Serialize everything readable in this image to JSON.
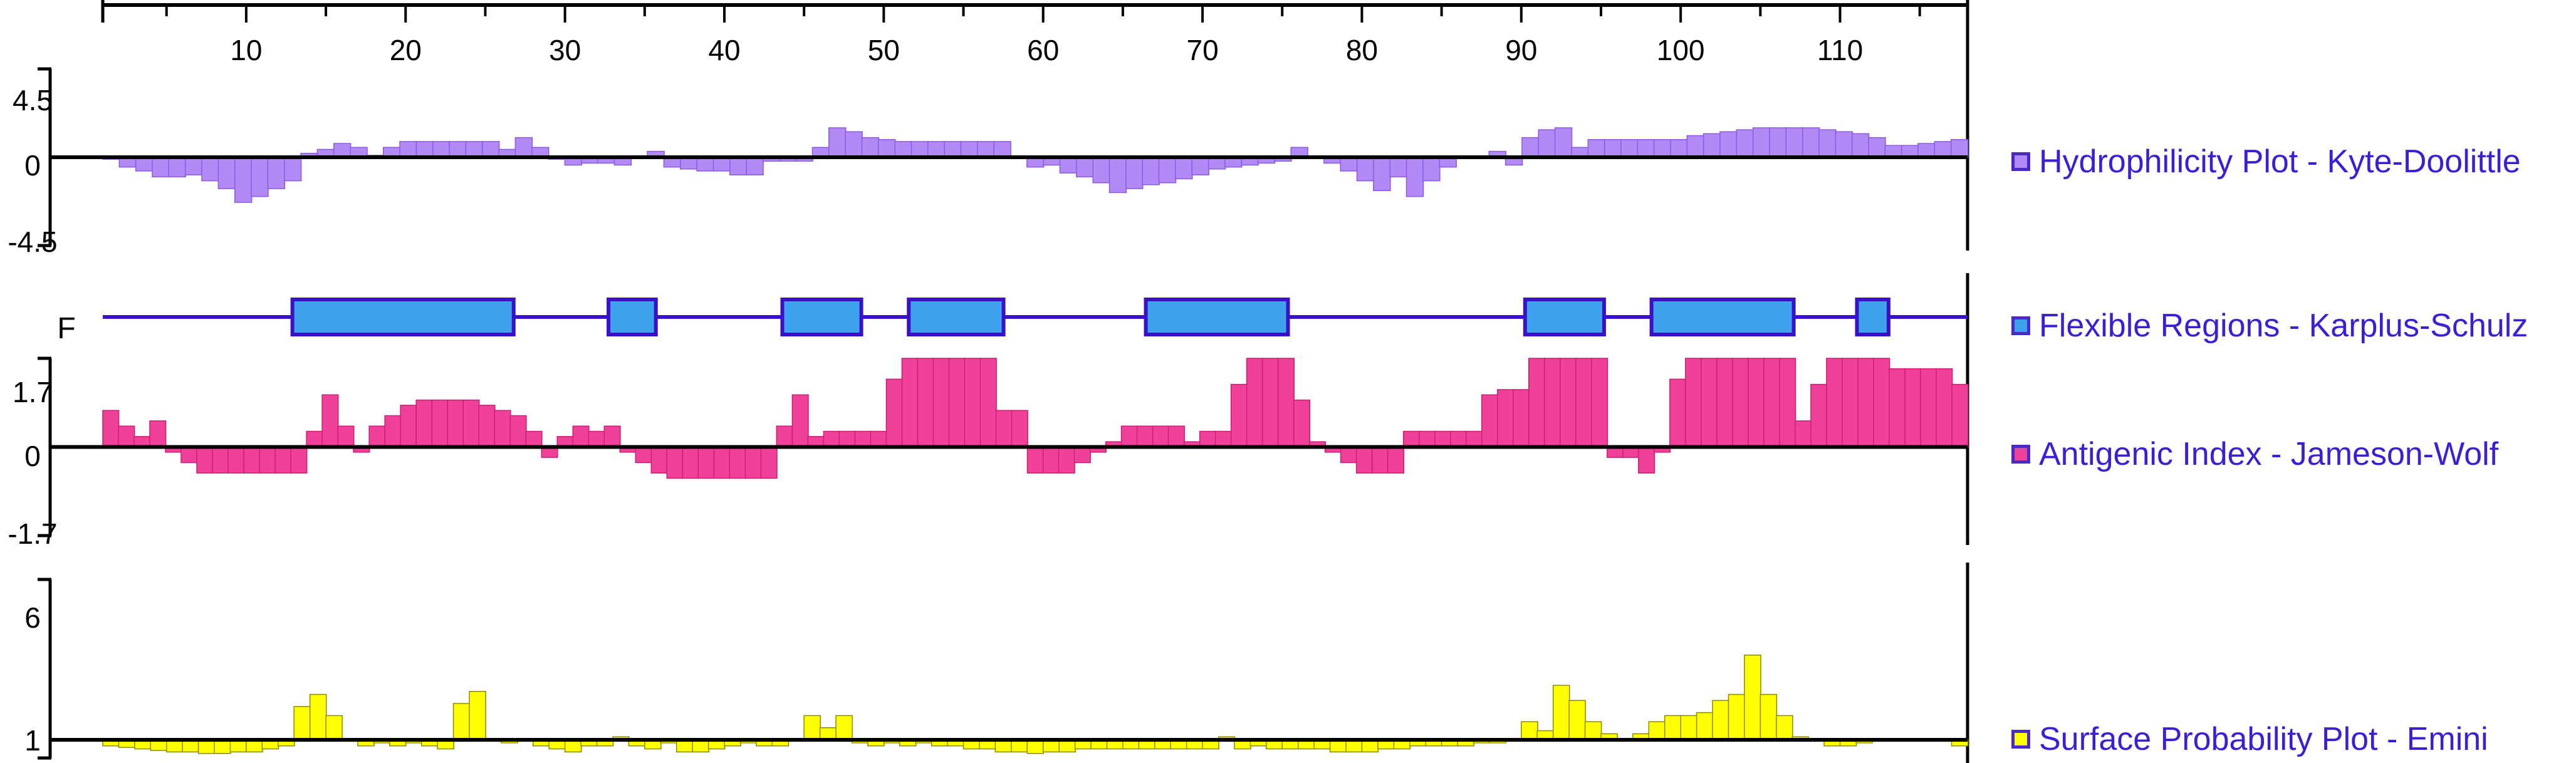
{
  "chart_data": {
    "type": "area",
    "x_axis": {
      "tick_labels": [
        "10",
        "20",
        "30",
        "40",
        "50",
        "60",
        "70",
        "80",
        "90",
        "100",
        "110"
      ],
      "tick_values": [
        10,
        20,
        30,
        40,
        50,
        60,
        70,
        80,
        90,
        100,
        110
      ],
      "range": [
        1,
        118
      ]
    },
    "panels": [
      {
        "name": "Hydrophilicity Plot - Kyte-Doolittle",
        "ylim": [
          -4.5,
          4.5
        ],
        "y_tick_labels": [
          "4.5",
          "0",
          "-4.5"
        ],
        "fill": "#b389f5",
        "stroke": "#8a5ae0",
        "values": [
          -0.1,
          -0.5,
          -0.7,
          -1.0,
          -1.0,
          -0.9,
          -1.2,
          -1.6,
          -2.3,
          -2.0,
          -1.6,
          -1.2,
          0.2,
          0.4,
          0.7,
          0.5,
          0.1,
          0.5,
          0.8,
          0.8,
          0.8,
          0.8,
          0.8,
          0.8,
          0.4,
          1.0,
          0.5,
          -0.1,
          -0.4,
          -0.3,
          -0.3,
          -0.4,
          0.0,
          0.3,
          -0.5,
          -0.6,
          -0.7,
          -0.7,
          -0.9,
          -0.9,
          -0.2,
          -0.2,
          -0.2,
          0.5,
          1.5,
          1.3,
          1.0,
          0.9,
          0.8,
          0.8,
          0.8,
          0.8,
          0.8,
          0.8,
          0.8,
          0.0,
          -0.5,
          -0.4,
          -0.8,
          -1.0,
          -1.3,
          -1.8,
          -1.6,
          -1.4,
          -1.3,
          -1.1,
          -0.9,
          -0.6,
          -0.5,
          -0.4,
          -0.3,
          -0.2,
          0.5,
          0.0,
          -0.3,
          -0.7,
          -1.2,
          -1.7,
          -1.0,
          -2.0,
          -1.2,
          -0.5,
          0.0,
          0.0,
          0.3,
          -0.4,
          1.0,
          1.4,
          1.5,
          0.5,
          0.9,
          0.9,
          0.9,
          0.9,
          0.9,
          0.9,
          1.1,
          1.2,
          1.3,
          1.4,
          1.5,
          1.5,
          1.5,
          1.5,
          1.4,
          1.3,
          1.2,
          1.0,
          0.6,
          0.6,
          0.7,
          0.8,
          0.9
        ]
      },
      {
        "name": "Flexible Regions - Karplus-Schulz",
        "y_tick_labels": [
          "F"
        ],
        "fill": "#3ea2ee",
        "stroke": "#3a10c8",
        "regions": [
          [
            13,
            26
          ],
          [
            33,
            35
          ],
          [
            44,
            48
          ],
          [
            52,
            57
          ],
          [
            67,
            75
          ],
          [
            91,
            95
          ],
          [
            99,
            107
          ],
          [
            112,
            113
          ]
        ]
      },
      {
        "name": "Antigenic Index - Jameson-Wolf",
        "ylim": [
          -1.7,
          1.7
        ],
        "y_tick_labels": [
          "1.7",
          "0",
          "-1.7"
        ],
        "fill": "#f0419a",
        "stroke": "#c8206d",
        "values": [
          0.7,
          0.4,
          0.2,
          0.5,
          -0.1,
          -0.3,
          -0.5,
          -0.5,
          -0.5,
          -0.5,
          -0.5,
          -0.5,
          -0.5,
          0.3,
          1.0,
          0.4,
          -0.1,
          0.4,
          0.6,
          0.8,
          0.9,
          0.9,
          0.9,
          0.9,
          0.8,
          0.7,
          0.6,
          0.3,
          -0.2,
          0.2,
          0.4,
          0.3,
          0.4,
          -0.1,
          -0.3,
          -0.5,
          -0.6,
          -0.6,
          -0.6,
          -0.6,
          -0.6,
          -0.6,
          -0.6,
          0.4,
          1.0,
          0.2,
          0.3,
          0.3,
          0.3,
          0.3,
          1.3,
          1.7,
          1.7,
          1.7,
          1.7,
          1.7,
          1.7,
          0.7,
          0.7,
          -0.5,
          -0.5,
          -0.5,
          -0.3,
          -0.1,
          0.1,
          0.4,
          0.4,
          0.4,
          0.4,
          0.1,
          0.3,
          0.3,
          1.2,
          1.7,
          1.7,
          1.7,
          0.9,
          0.1,
          -0.1,
          -0.3,
          -0.5,
          -0.5,
          -0.5,
          0.3,
          0.3,
          0.3,
          0.3,
          0.3,
          1.0,
          1.1,
          1.1,
          1.7,
          1.7,
          1.7,
          1.7,
          1.7,
          -0.2,
          -0.2,
          -0.5,
          -0.1,
          1.3,
          1.7,
          1.7,
          1.7,
          1.7,
          1.7,
          1.7,
          1.7,
          0.5,
          1.2,
          1.7,
          1.7,
          1.7,
          1.7,
          1.5,
          1.5,
          1.5,
          1.5,
          1.2
        ]
      },
      {
        "name": "Surface Probability Plot - Emini",
        "ylim": [
          0.4,
          6.3
        ],
        "y_tick_labels": [
          "6",
          "1"
        ],
        "fill": "#ffff00",
        "stroke": "#8a8a00",
        "values": [
          0.8,
          0.75,
          0.7,
          0.65,
          0.6,
          0.6,
          0.55,
          0.55,
          0.6,
          0.6,
          0.7,
          0.8,
          2.1,
          2.5,
          1.8,
          1.0,
          0.8,
          0.9,
          0.8,
          0.9,
          0.8,
          0.7,
          2.2,
          2.6,
          1.0,
          0.9,
          1.0,
          0.8,
          0.7,
          0.6,
          0.8,
          0.8,
          1.1,
          0.8,
          0.7,
          0.9,
          0.6,
          0.6,
          0.7,
          0.8,
          0.9,
          0.8,
          0.8,
          1.0,
          1.8,
          1.4,
          1.8,
          0.9,
          0.8,
          0.9,
          0.8,
          0.9,
          0.8,
          0.8,
          0.7,
          0.7,
          0.6,
          0.6,
          0.55,
          0.6,
          0.6,
          0.7,
          0.7,
          0.7,
          0.7,
          0.7,
          0.7,
          0.7,
          0.7,
          0.7,
          1.1,
          0.7,
          0.8,
          0.7,
          0.7,
          0.7,
          0.7,
          0.6,
          0.6,
          0.6,
          0.7,
          0.7,
          0.8,
          0.8,
          0.8,
          0.8,
          0.9,
          0.9,
          1.0,
          1.6,
          1.3,
          2.8,
          2.3,
          1.6,
          1.2,
          1.0,
          1.2,
          1.6,
          1.8,
          1.8,
          1.9,
          2.3,
          2.5,
          3.8,
          2.5,
          1.8,
          1.1,
          1.0,
          0.8,
          0.8,
          0.9,
          1.0,
          1.0,
          1.0,
          1.0,
          1.0,
          0.8
        ]
      }
    ]
  }
}
